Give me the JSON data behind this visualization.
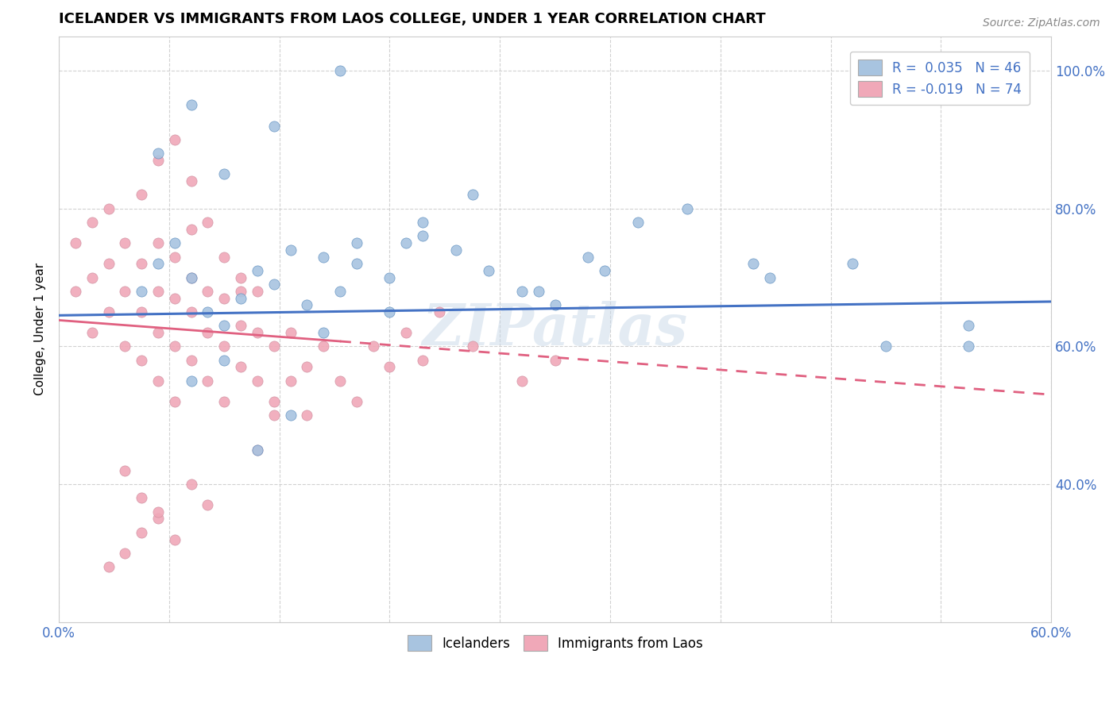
{
  "title": "ICELANDER VS IMMIGRANTS FROM LAOS COLLEGE, UNDER 1 YEAR CORRELATION CHART",
  "source": "Source: ZipAtlas.com",
  "ylabel": "College, Under 1 year",
  "xmin": 0.0,
  "xmax": 0.6,
  "ymin": 0.2,
  "ymax": 1.05,
  "yticks": [
    0.4,
    0.6,
    0.8,
    1.0
  ],
  "r_icelander": 0.035,
  "n_icelander": 46,
  "r_laos": -0.019,
  "n_laos": 74,
  "color_icelander": "#a8c4e0",
  "color_laos": "#f0a8b8",
  "color_line_icelander": "#4472c4",
  "color_line_laos": "#e06080",
  "icelander_x": [
    0.05,
    0.06,
    0.07,
    0.08,
    0.09,
    0.1,
    0.11,
    0.12,
    0.13,
    0.14,
    0.15,
    0.16,
    0.17,
    0.18,
    0.2,
    0.22,
    0.24,
    0.26,
    0.29,
    0.32,
    0.35,
    0.42,
    0.5,
    0.55,
    0.08,
    0.1,
    0.12,
    0.14,
    0.16,
    0.18,
    0.2,
    0.22,
    0.25,
    0.28,
    0.3,
    0.33,
    0.38,
    0.43,
    0.48,
    0.55,
    0.06,
    0.08,
    0.1,
    0.13,
    0.17,
    0.21
  ],
  "icelander_y": [
    0.68,
    0.72,
    0.75,
    0.7,
    0.65,
    0.63,
    0.67,
    0.71,
    0.69,
    0.74,
    0.66,
    0.73,
    0.68,
    0.72,
    0.65,
    0.78,
    0.74,
    0.71,
    0.68,
    0.73,
    0.78,
    0.72,
    0.6,
    0.63,
    0.55,
    0.58,
    0.45,
    0.5,
    0.62,
    0.75,
    0.7,
    0.76,
    0.82,
    0.68,
    0.66,
    0.71,
    0.8,
    0.7,
    0.72,
    0.6,
    0.88,
    0.95,
    0.85,
    0.92,
    1.0,
    0.75
  ],
  "laos_x": [
    0.01,
    0.01,
    0.02,
    0.02,
    0.02,
    0.03,
    0.03,
    0.03,
    0.04,
    0.04,
    0.04,
    0.05,
    0.05,
    0.05,
    0.06,
    0.06,
    0.06,
    0.06,
    0.07,
    0.07,
    0.07,
    0.07,
    0.08,
    0.08,
    0.08,
    0.08,
    0.09,
    0.09,
    0.09,
    0.1,
    0.1,
    0.1,
    0.11,
    0.11,
    0.11,
    0.12,
    0.12,
    0.12,
    0.13,
    0.13,
    0.14,
    0.14,
    0.15,
    0.15,
    0.16,
    0.17,
    0.18,
    0.19,
    0.2,
    0.21,
    0.22,
    0.23,
    0.25,
    0.28,
    0.3,
    0.05,
    0.06,
    0.07,
    0.08,
    0.09,
    0.1,
    0.11,
    0.12,
    0.13,
    0.04,
    0.05,
    0.06,
    0.07,
    0.08,
    0.09,
    0.03,
    0.04,
    0.05,
    0.06
  ],
  "laos_y": [
    0.68,
    0.75,
    0.62,
    0.7,
    0.78,
    0.65,
    0.72,
    0.8,
    0.6,
    0.68,
    0.75,
    0.58,
    0.65,
    0.72,
    0.55,
    0.62,
    0.68,
    0.75,
    0.52,
    0.6,
    0.67,
    0.73,
    0.58,
    0.65,
    0.7,
    0.77,
    0.55,
    0.62,
    0.68,
    0.52,
    0.6,
    0.67,
    0.57,
    0.63,
    0.7,
    0.55,
    0.62,
    0.68,
    0.52,
    0.6,
    0.55,
    0.62,
    0.5,
    0.57,
    0.6,
    0.55,
    0.52,
    0.6,
    0.57,
    0.62,
    0.58,
    0.65,
    0.6,
    0.55,
    0.58,
    0.82,
    0.87,
    0.9,
    0.84,
    0.78,
    0.73,
    0.68,
    0.45,
    0.5,
    0.42,
    0.38,
    0.35,
    0.32,
    0.4,
    0.37,
    0.28,
    0.3,
    0.33,
    0.36
  ]
}
